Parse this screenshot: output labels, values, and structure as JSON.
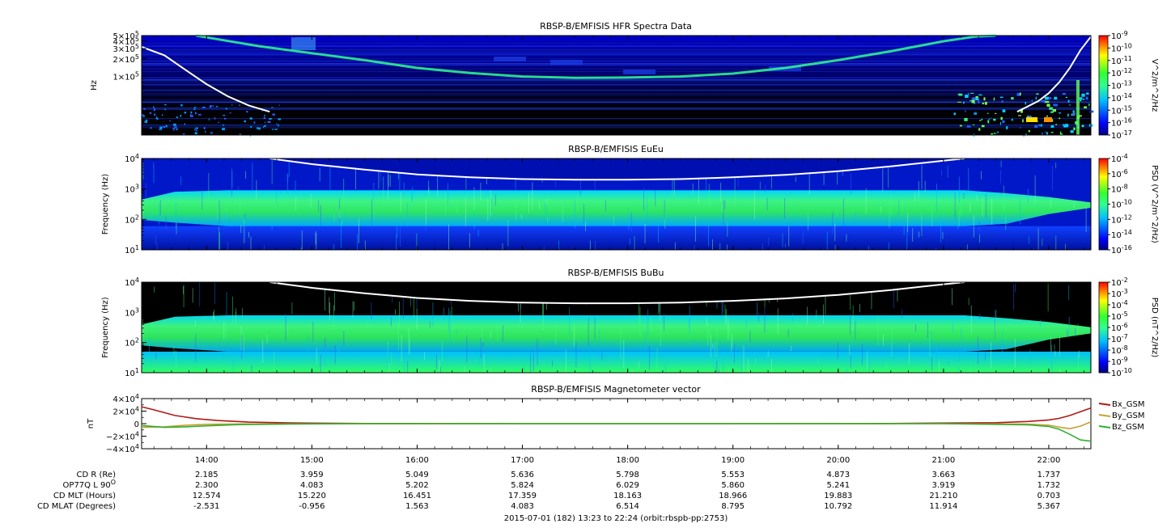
{
  "footer": "2015-07-01 (182) 13:23 to 22:24 (orbit:rbspb-pp:2753)",
  "time_axis": {
    "start_hours": 13.383,
    "end_hours": 22.4,
    "tick_hours": [
      14,
      15,
      16,
      17,
      18,
      19,
      20,
      21,
      22
    ],
    "tick_labels": [
      "14:00",
      "15:00",
      "16:00",
      "17:00",
      "18:00",
      "19:00",
      "20:00",
      "21:00",
      "22:00"
    ]
  },
  "ephemeris": [
    {
      "label": "CD R (Re)",
      "values": [
        "2.185",
        "3.959",
        "5.049",
        "5.636",
        "5.798",
        "5.553",
        "4.873",
        "3.663",
        "1.737"
      ]
    },
    {
      "label": "OP77Q L 90",
      "label_sup": "O",
      "values": [
        "2.300",
        "4.083",
        "5.202",
        "5.824",
        "6.029",
        "5.860",
        "5.241",
        "3.919",
        "1.732"
      ]
    },
    {
      "label": "CD MLT (Hours)",
      "values": [
        "12.574",
        "15.220",
        "16.451",
        "17.359",
        "18.163",
        "18.966",
        "19.883",
        "21.210",
        "0.703"
      ]
    },
    {
      "label": "CD MLAT (Degrees)",
      "values": [
        "-2.531",
        "-0.956",
        "1.563",
        "4.083",
        "6.514",
        "8.795",
        "10.792",
        "11.914",
        "5.367"
      ]
    }
  ],
  "chart_data": [
    {
      "type": "heatmap",
      "title": "RBSP-B/EMFISIS  HFR Spectra Data",
      "ylabel": "Hz",
      "y_scale": "log",
      "ylim": [
        10000,
        500000
      ],
      "y_ticks": [
        {
          "value": 500000,
          "label": "5×10",
          "exp": "5"
        },
        {
          "value": 400000,
          "label": "4×10",
          "exp": "5"
        },
        {
          "value": 300000,
          "label": "3×10",
          "exp": "5"
        },
        {
          "value": 200000,
          "label": "2×10",
          "exp": "5"
        },
        {
          "value": 100000,
          "label": "1×10",
          "exp": "5"
        }
      ],
      "colorbar": {
        "label": "V^2/m^2/Hz",
        "scale": "log",
        "range": [
          1e-17,
          1e-09
        ],
        "ticks": [
          {
            "exp": "-9"
          },
          {
            "exp": "-10"
          },
          {
            "exp": "-11"
          },
          {
            "exp": "-12"
          },
          {
            "exp": "-13"
          },
          {
            "exp": "-14"
          },
          {
            "exp": "-15"
          },
          {
            "exp": "-16"
          },
          {
            "exp": "-17"
          }
        ]
      },
      "white_line": {
        "t": [
          13.383,
          13.6,
          13.8,
          14.0,
          14.2,
          14.4,
          14.6,
          21.7,
          21.9,
          22.0,
          22.1,
          22.2,
          22.3,
          22.4
        ],
        "v": [
          320000,
          230000,
          130000,
          74000,
          46000,
          32000,
          25000,
          25000,
          38000,
          52000,
          80000,
          140000,
          280000,
          480000
        ]
      },
      "feature_line": {
        "t": [
          13.9,
          14.5,
          15.0,
          15.5,
          16.0,
          16.5,
          17.0,
          17.5,
          18.0,
          18.5,
          19.0,
          19.5,
          20.0,
          20.5,
          21.0,
          21.3,
          21.5
        ],
        "v": [
          500000,
          330000,
          250000,
          190000,
          140000,
          115000,
          100000,
          95000,
          96000,
          100000,
          112000,
          140000,
          190000,
          270000,
          400000,
          480000,
          500000
        ]
      }
    },
    {
      "type": "heatmap",
      "title": "RBSP-B/EMFISIS  EuEu",
      "ylabel": "Frequency (Hz)",
      "y_scale": "log",
      "ylim": [
        10,
        10000
      ],
      "y_ticks": [
        {
          "value": 10000,
          "label": "10",
          "exp": "4"
        },
        {
          "value": 1000,
          "label": "10",
          "exp": "3"
        },
        {
          "value": 100,
          "label": "10",
          "exp": "2"
        },
        {
          "value": 10,
          "label": "10",
          "exp": "1"
        }
      ],
      "colorbar": {
        "label": "PSD (V^2/m^2/Hz)",
        "scale": "log",
        "range": [
          1e-16,
          0.0001
        ],
        "ticks": [
          {
            "exp": "-4"
          },
          {
            "exp": "-6"
          },
          {
            "exp": "-8"
          },
          {
            "exp": "-10"
          },
          {
            "exp": "-12"
          },
          {
            "exp": "-14"
          },
          {
            "exp": "-16"
          }
        ]
      },
      "white_line": {
        "t": [
          14.6,
          15.0,
          15.5,
          16.0,
          16.5,
          17.0,
          17.5,
          18.0,
          18.5,
          19.0,
          19.5,
          20.0,
          20.5,
          21.0,
          21.2
        ],
        "v": [
          10000,
          6500,
          4300,
          3000,
          2400,
          2100,
          2000,
          2000,
          2100,
          2400,
          2900,
          3800,
          5500,
          8500,
          10000
        ]
      },
      "band": {
        "low_hz": 60,
        "high_hz": 900
      }
    },
    {
      "type": "heatmap",
      "title": "RBSP-B/EMFISIS  BuBu",
      "ylabel": "Frequency (Hz)",
      "y_scale": "log",
      "ylim": [
        10,
        10000
      ],
      "y_ticks": [
        {
          "value": 10000,
          "label": "10",
          "exp": "4"
        },
        {
          "value": 1000,
          "label": "10",
          "exp": "3"
        },
        {
          "value": 100,
          "label": "10",
          "exp": "2"
        },
        {
          "value": 10,
          "label": "10",
          "exp": "1"
        }
      ],
      "colorbar": {
        "label": "PSD (nT^2/Hz)",
        "scale": "log",
        "range": [
          1e-10,
          0.01
        ],
        "ticks": [
          {
            "exp": "-2"
          },
          {
            "exp": "-3"
          },
          {
            "exp": "-4"
          },
          {
            "exp": "-5"
          },
          {
            "exp": "-6"
          },
          {
            "exp": "-7"
          },
          {
            "exp": "-8"
          },
          {
            "exp": "-9"
          },
          {
            "exp": "-10"
          }
        ]
      },
      "white_line": {
        "t": [
          14.6,
          15.0,
          15.5,
          16.0,
          16.5,
          17.0,
          17.5,
          18.0,
          18.5,
          19.0,
          19.5,
          20.0,
          20.5,
          21.0,
          21.2
        ],
        "v": [
          10000,
          6500,
          4300,
          3000,
          2400,
          2100,
          2000,
          2000,
          2100,
          2400,
          2900,
          3800,
          5500,
          8500,
          10000
        ]
      },
      "band": {
        "low_hz": 50,
        "high_hz": 800
      }
    },
    {
      "type": "line",
      "title": "RBSP-B/EMFISIS  Magnetometer vector",
      "ylabel": "nT",
      "ylim": [
        -40000,
        40000
      ],
      "y_ticks": [
        {
          "value": 40000,
          "label": "4×10",
          "exp": "4"
        },
        {
          "value": 20000,
          "label": "2×10",
          "exp": "4"
        },
        {
          "value": 0,
          "label": "0",
          "exp": ""
        },
        {
          "value": -20000,
          "label": "−2×10",
          "exp": "4"
        },
        {
          "value": -40000,
          "label": "−4×10",
          "exp": "4"
        }
      ],
      "series": [
        {
          "name": "Bx_GSM",
          "color": "#b01818",
          "t": [
            13.383,
            13.5,
            13.7,
            13.9,
            14.1,
            14.4,
            14.8,
            15.5,
            17,
            19,
            20.5,
            21.5,
            21.8,
            22.0,
            22.1,
            22.2,
            22.3,
            22.4
          ],
          "v": [
            27000,
            22000,
            13000,
            8000,
            5000,
            2500,
            1200,
            300,
            0,
            0,
            300,
            1500,
            3500,
            6000,
            8500,
            13000,
            19000,
            25000
          ]
        },
        {
          "name": "By_GSM",
          "color": "#c8a030",
          "t": [
            13.383,
            13.6,
            13.8,
            14.0,
            14.3,
            14.8,
            15.5,
            17,
            19,
            21,
            21.8,
            22.0,
            22.1,
            22.2,
            22.3,
            22.4
          ],
          "v": [
            -6000,
            -5000,
            -2500,
            -1000,
            -500,
            -200,
            0,
            0,
            0,
            0,
            -800,
            -2500,
            -5500,
            -8000,
            -4000,
            3000
          ]
        },
        {
          "name": "Bz_GSM",
          "color": "#30b030",
          "t": [
            13.383,
            13.6,
            13.8,
            14.0,
            14.3,
            14.8,
            15.5,
            17,
            19,
            21,
            21.8,
            22.0,
            22.1,
            22.2,
            22.3,
            22.4
          ],
          "v": [
            -3000,
            -6000,
            -5000,
            -3500,
            -1500,
            -500,
            0,
            0,
            0,
            0,
            -2000,
            -4500,
            -9000,
            -17000,
            -26000,
            -28000
          ]
        }
      ]
    }
  ]
}
